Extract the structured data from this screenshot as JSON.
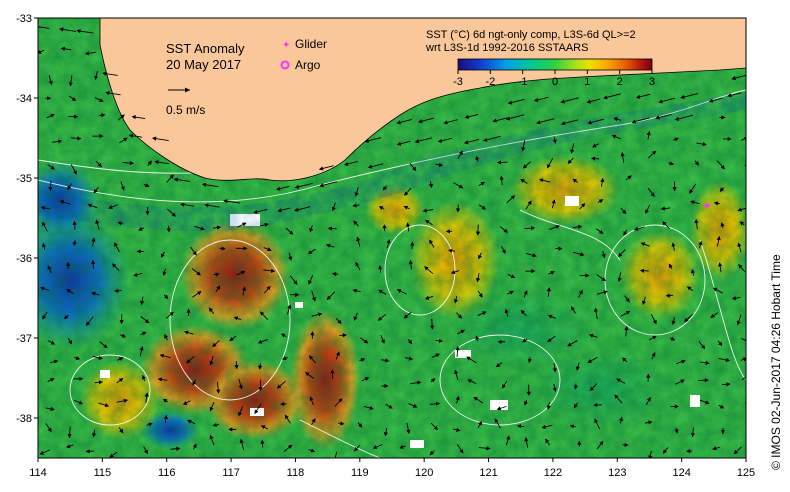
{
  "title": "SST Anomaly",
  "date": "20 May 2017",
  "legend": {
    "glider_label": "Glider",
    "argo_label": "Argo",
    "glider_color": "#ff33ff",
    "argo_color": "#ff33ff"
  },
  "vector_scale": {
    "label": "0.5 m/s"
  },
  "product": {
    "line1": "SST (°C) 6d ngt-only comp, L3S-6d QL>=2",
    "line2": "wrt L3S-1d 1992-2016 SSTAARS"
  },
  "colorbar": {
    "ticks": [
      "-3",
      "-2",
      "-1",
      "0",
      "1",
      "2",
      "3"
    ],
    "range": [
      -3,
      3
    ],
    "colors": [
      "#1a0a7a",
      "#1040d0",
      "#00a0e8",
      "#00c890",
      "#30d040",
      "#a0e020",
      "#f0e000",
      "#f8a000",
      "#e05000",
      "#b01010",
      "#780010"
    ]
  },
  "axes": {
    "x_ticks": [
      "114",
      "115",
      "116",
      "117",
      "118",
      "119",
      "120",
      "121",
      "122",
      "123",
      "124",
      "125"
    ],
    "y_ticks": [
      "-33",
      "-34",
      "-35",
      "-36",
      "-37",
      "-38"
    ]
  },
  "credit": "© IMOS 02-Jun-2017 04:26 Hobart Time",
  "colors": {
    "land": "#f9c79a",
    "coast": "#000000",
    "contour": "#ffffff",
    "vector": "#000000"
  }
}
